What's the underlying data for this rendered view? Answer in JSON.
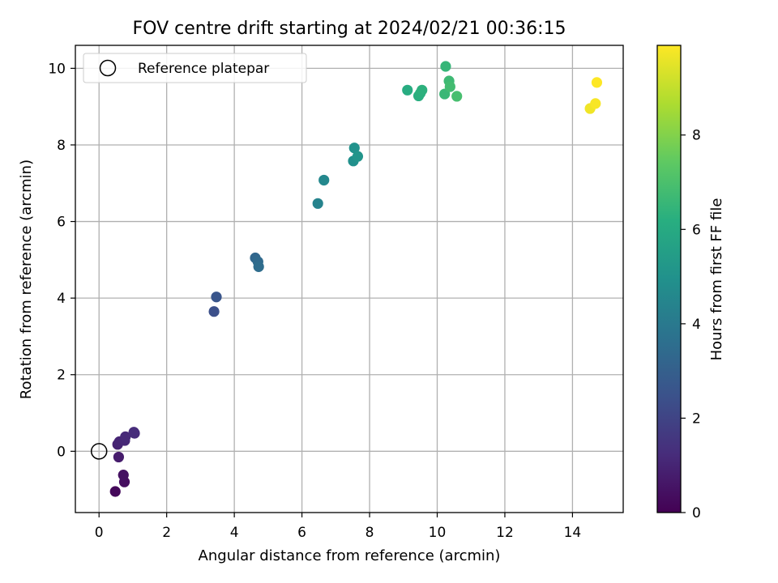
{
  "chart_data": {
    "type": "scatter",
    "title": "FOV centre drift starting at 2024/02/21 00:36:15",
    "xlabel": "Angular distance from reference (arcmin)",
    "ylabel": "Rotation from reference (arcmin)",
    "xlim": [
      -0.7,
      15.5
    ],
    "ylim": [
      -1.6,
      10.6
    ],
    "xticks": [
      0,
      2,
      4,
      6,
      8,
      10,
      12,
      14
    ],
    "yticks": [
      0,
      2,
      4,
      6,
      8,
      10
    ],
    "grid": true,
    "legend": {
      "placement": "upper-left",
      "label": "Reference platepar"
    },
    "reference_point": {
      "x": 0,
      "y": 0
    },
    "colorbar": {
      "label": "Hours from first FF file",
      "range": [
        0,
        9.9
      ],
      "ticks": [
        0,
        2,
        4,
        6,
        8
      ],
      "colormap": "viridis"
    },
    "points": [
      {
        "x": 0.48,
        "y": -1.05,
        "hours": 0.2
      },
      {
        "x": 0.75,
        "y": -0.8,
        "hours": 0.35
      },
      {
        "x": 0.72,
        "y": -0.62,
        "hours": 0.45
      },
      {
        "x": 0.58,
        "y": -0.15,
        "hours": 0.75
      },
      {
        "x": 0.55,
        "y": 0.18,
        "hours": 0.95
      },
      {
        "x": 0.6,
        "y": 0.25,
        "hours": 1.0
      },
      {
        "x": 0.76,
        "y": 0.28,
        "hours": 1.1
      },
      {
        "x": 0.78,
        "y": 0.38,
        "hours": 1.15
      },
      {
        "x": 1.05,
        "y": 0.47,
        "hours": 1.2
      },
      {
        "x": 1.03,
        "y": 0.5,
        "hours": 1.25
      },
      {
        "x": 3.4,
        "y": 3.65,
        "hours": 2.4
      },
      {
        "x": 3.47,
        "y": 4.03,
        "hours": 2.6
      },
      {
        "x": 4.62,
        "y": 5.05,
        "hours": 3.3
      },
      {
        "x": 4.7,
        "y": 4.95,
        "hours": 3.4
      },
      {
        "x": 4.72,
        "y": 4.82,
        "hours": 3.5
      },
      {
        "x": 6.47,
        "y": 6.47,
        "hours": 4.4
      },
      {
        "x": 6.65,
        "y": 7.08,
        "hours": 4.6
      },
      {
        "x": 7.52,
        "y": 7.58,
        "hours": 4.9
      },
      {
        "x": 7.55,
        "y": 7.92,
        "hours": 5.0
      },
      {
        "x": 7.65,
        "y": 7.7,
        "hours": 5.1
      },
      {
        "x": 9.12,
        "y": 9.43,
        "hours": 6.1
      },
      {
        "x": 9.45,
        "y": 9.28,
        "hours": 6.2
      },
      {
        "x": 9.5,
        "y": 9.35,
        "hours": 6.25
      },
      {
        "x": 9.55,
        "y": 9.43,
        "hours": 6.3
      },
      {
        "x": 10.25,
        "y": 10.05,
        "hours": 6.5
      },
      {
        "x": 10.22,
        "y": 9.33,
        "hours": 6.6
      },
      {
        "x": 10.35,
        "y": 9.67,
        "hours": 6.7
      },
      {
        "x": 10.38,
        "y": 9.52,
        "hours": 6.8
      },
      {
        "x": 10.58,
        "y": 9.27,
        "hours": 6.9
      },
      {
        "x": 14.52,
        "y": 8.95,
        "hours": 9.7
      },
      {
        "x": 14.68,
        "y": 9.08,
        "hours": 9.8
      },
      {
        "x": 14.72,
        "y": 9.63,
        "hours": 9.9
      }
    ]
  }
}
